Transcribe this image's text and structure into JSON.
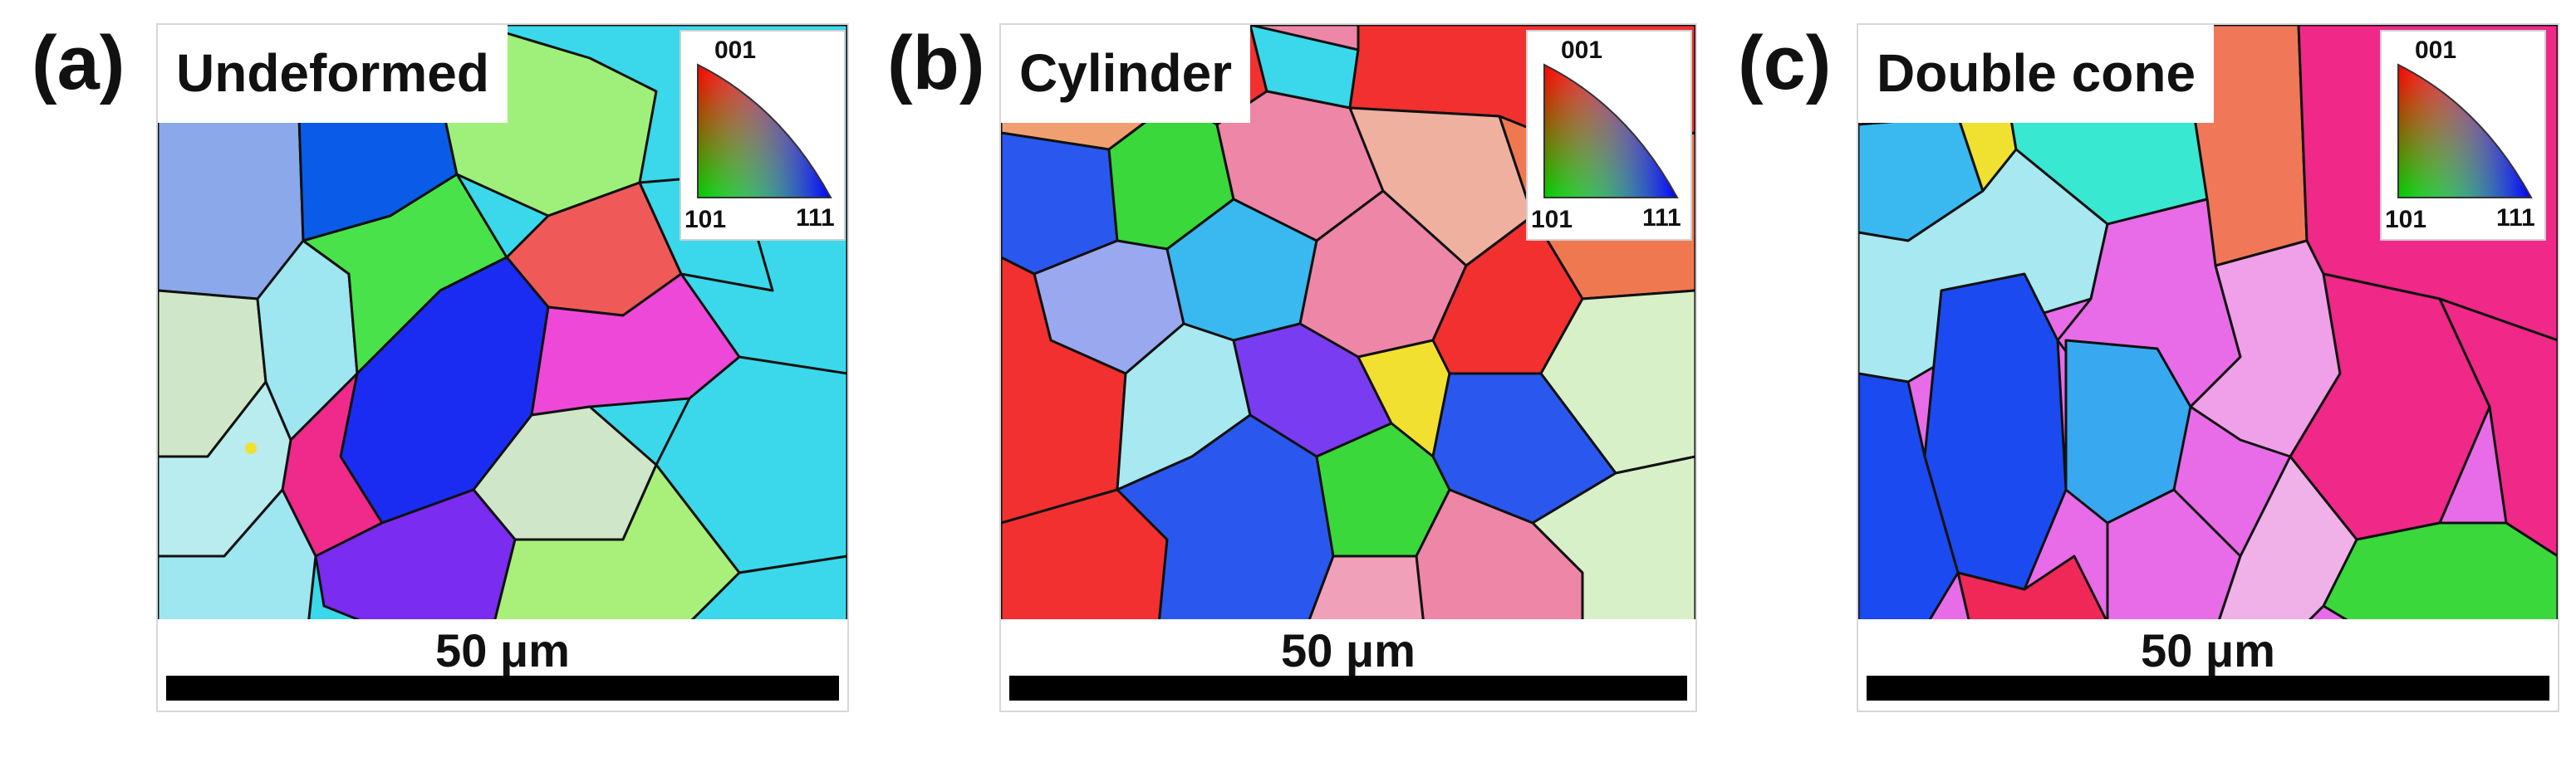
{
  "panels": [
    {
      "letter": "(a)",
      "title": "Undeformed",
      "ipf_key": {
        "top": "001",
        "left": "101",
        "right": "111"
      },
      "scale_label": "50 μm",
      "dominant_colors": [
        "#3ad8ea",
        "#9ee6f0",
        "#1a2cf2",
        "#4ae24a",
        "#ef5a58",
        "#ee48d8",
        "#7a2cf0",
        "#cfe6c8",
        "#8aa8ea",
        "#0a5ce8"
      ]
    },
    {
      "letter": "(b)",
      "title": "Cylinder",
      "ipf_key": {
        "top": "001",
        "left": "101",
        "right": "111"
      },
      "scale_label": "50 μm",
      "dominant_colors": [
        "#f23030",
        "#ee86a8",
        "#2a58ee",
        "#3ad83a",
        "#f0a070",
        "#9aa8f0",
        "#d8f0c8",
        "#f2e030",
        "#3ab8f0"
      ]
    },
    {
      "letter": "(c)",
      "title": "Double cone",
      "ipf_key": {
        "top": "001",
        "left": "101",
        "right": "111"
      },
      "scale_label": "50 μm",
      "dominant_colors": [
        "#1a4af0",
        "#f02888",
        "#e86ce8",
        "#38a8f0",
        "#f07858",
        "#2ad8e8",
        "#f0e030",
        "#7a3cf0"
      ]
    }
  ]
}
